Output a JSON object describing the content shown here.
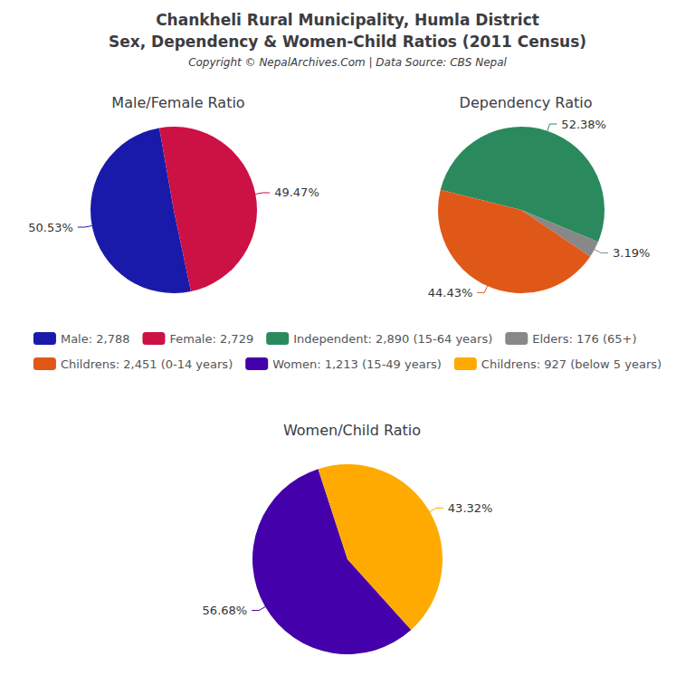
{
  "title": "Chankheli Rural Municipality, Humla District",
  "subtitle": "Sex, Dependency & Women-Child Ratios (2011 Census)",
  "annotations": [
    "Copyright © NepalArchives.Com | Data Source: CBS Nepal"
  ],
  "legend": "center",
  "chart_data": [
    {
      "type": "pie",
      "title": "Male/Female Ratio",
      "categories": [
        "Male: 2,788",
        "Female: 2,729"
      ],
      "values": [
        50.53,
        49.47
      ],
      "value_labels": [
        "50.53%",
        "49.47%"
      ],
      "colors": [
        "#1a1aaa",
        "#cc1144"
      ],
      "data_labels": true
    },
    {
      "type": "pie",
      "title": "Dependency Ratio",
      "categories": [
        "Independent: 2,890 (15-64 years)",
        "Elders: 176 (65+)",
        "Childrens: 2,451 (0-14 years)"
      ],
      "values": [
        52.38,
        3.19,
        44.43
      ],
      "value_labels": [
        "52.38%",
        "3.19%",
        "44.43%"
      ],
      "colors": [
        "#2a8a5e",
        "#888888",
        "#e05818"
      ],
      "data_labels": true
    },
    {
      "type": "pie",
      "title": "Women/Child Ratio",
      "categories": [
        "Women: 1,213 (15-49 years)",
        "Childrens: 927 (below 5 years)"
      ],
      "values": [
        56.68,
        43.32
      ],
      "value_labels": [
        "56.68%",
        "43.32%"
      ],
      "colors": [
        "#4400aa",
        "#ffaa00"
      ],
      "data_labels": true
    }
  ]
}
